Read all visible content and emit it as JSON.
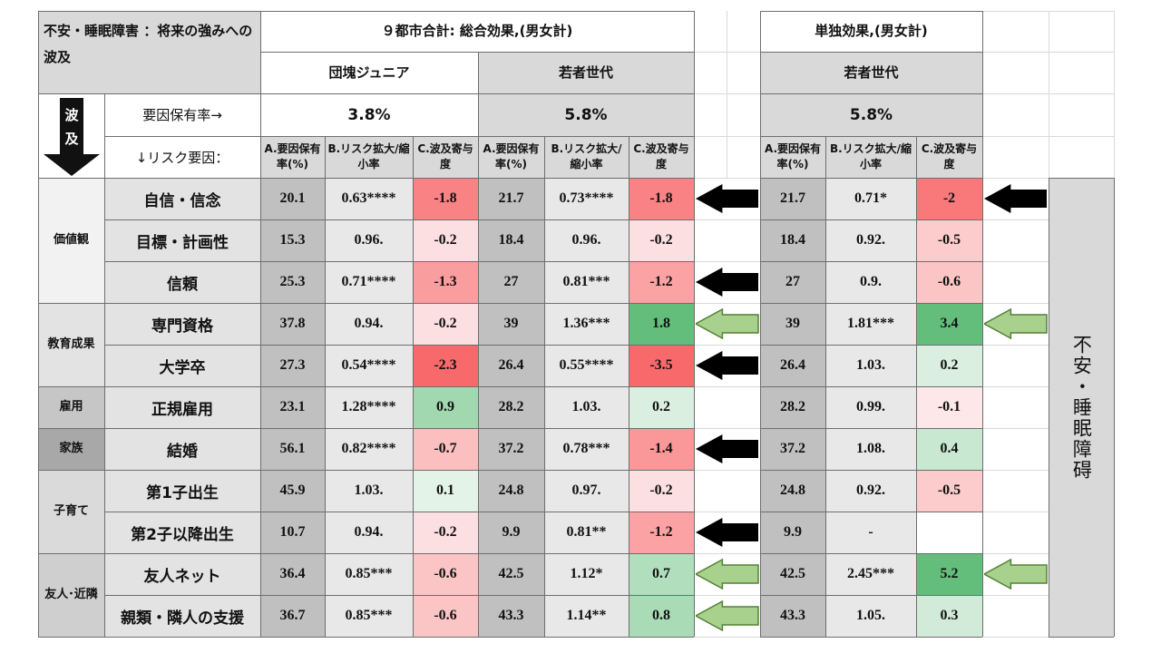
{
  "colors": {
    "header_gray": "#d9d9d9",
    "label_gray": "#e3e3e3",
    "a_gray": "#c0c0c0",
    "b_gray": "#e8e8e8",
    "neg_scale": "#f8696b",
    "pos_scale": "#63be7b",
    "arrow_solid": "#000000",
    "arrow_hollow_fill": "#a9d18e",
    "arrow_hollow_stroke": "#538135"
  },
  "header": {
    "corner_title": "不安・睡眠障害 ：将来の強みへの波及",
    "group1_title": "９都市合計: 総合効果,(男女計)",
    "group2_title": "単独効果,(男女計)",
    "sub_dankai": "団塊ジュニア",
    "sub_wakamono1": "若者世代",
    "sub_wakamono2": "若者世代",
    "hakyu": "波及",
    "rate_label": "要因保有率→",
    "risk_label": "↓リスク要因：",
    "rate_dankai": "3.8%",
    "rate_wakamono1": "5.8%",
    "rate_wakamono2": "5.8%",
    "col_a": "A.要因保有率(%)",
    "col_b_1": "B.リスク拡大/縮小率",
    "col_b_2": "B.リスク拡大/縮小率",
    "col_c": "C.波及寄与度",
    "outcome": "不安・睡眠障碍"
  },
  "chart_data": {
    "type": "table",
    "title": "不安・睡眠障害 ：将来の強みへの波及",
    "column_groups": [
      "９都市合計: 総合効果,(男女計) — 団塊ジュニア",
      "９都市合計: 総合効果,(男女計) — 若者世代",
      "単独効果,(男女計) — 若者世代"
    ],
    "columns": [
      "A.要因保有率(%)",
      "B.リスク拡大/縮小率",
      "C.波及寄与度"
    ],
    "categories": [
      "価値観",
      "教育成果",
      "雇用",
      "家族",
      "子育て",
      "友人･近隣"
    ],
    "rows": [
      {
        "factor": "自信・信念",
        "dankai": {
          "a": "20.1",
          "b": "0.63****",
          "c": "-1.8"
        },
        "wakamono": {
          "a": "21.7",
          "b": "0.73****",
          "c": "-1.8"
        },
        "single": {
          "a": "21.7",
          "b": "0.71*",
          "c": "-2"
        },
        "arrow_mid": "solid",
        "arrow_right": "solid"
      },
      {
        "factor": "目標・計画性",
        "dankai": {
          "a": "15.3",
          "b": "0.96.",
          "c": "-0.2"
        },
        "wakamono": {
          "a": "18.4",
          "b": "0.96.",
          "c": "-0.2"
        },
        "single": {
          "a": "18.4",
          "b": "0.92.",
          "c": "-0.5"
        },
        "arrow_mid": "",
        "arrow_right": ""
      },
      {
        "factor": "信頼",
        "dankai": {
          "a": "25.3",
          "b": "0.71****",
          "c": "-1.3"
        },
        "wakamono": {
          "a": "27",
          "b": "0.81***",
          "c": "-1.2"
        },
        "single": {
          "a": "27",
          "b": "0.9.",
          "c": "-0.6"
        },
        "arrow_mid": "solid",
        "arrow_right": ""
      },
      {
        "factor": "専門資格",
        "dankai": {
          "a": "37.8",
          "b": "0.94.",
          "c": "-0.2"
        },
        "wakamono": {
          "a": "39",
          "b": "1.36***",
          "c": "1.8"
        },
        "single": {
          "a": "39",
          "b": "1.81***",
          "c": "3.4"
        },
        "arrow_mid": "hollow",
        "arrow_right": "hollow"
      },
      {
        "factor": "大学卒",
        "dankai": {
          "a": "27.3",
          "b": "0.54****",
          "c": "-2.3"
        },
        "wakamono": {
          "a": "26.4",
          "b": "0.55****",
          "c": "-3.5"
        },
        "single": {
          "a": "26.4",
          "b": "1.03.",
          "c": "0.2"
        },
        "arrow_mid": "solid",
        "arrow_right": ""
      },
      {
        "factor": "正規雇用",
        "dankai": {
          "a": "23.1",
          "b": "1.28****",
          "c": "0.9"
        },
        "wakamono": {
          "a": "28.2",
          "b": "1.03.",
          "c": "0.2"
        },
        "single": {
          "a": "28.2",
          "b": "0.99.",
          "c": "-0.1"
        },
        "arrow_mid": "",
        "arrow_right": ""
      },
      {
        "factor": "結婚",
        "dankai": {
          "a": "56.1",
          "b": "0.82****",
          "c": "-0.7"
        },
        "wakamono": {
          "a": "37.2",
          "b": "0.78***",
          "c": "-1.4"
        },
        "single": {
          "a": "37.2",
          "b": "1.08.",
          "c": "0.4"
        },
        "arrow_mid": "solid",
        "arrow_right": ""
      },
      {
        "factor": "第1子出生",
        "dankai": {
          "a": "45.9",
          "b": "1.03.",
          "c": "0.1"
        },
        "wakamono": {
          "a": "24.8",
          "b": "0.97.",
          "c": "-0.2"
        },
        "single": {
          "a": "24.8",
          "b": "0.92.",
          "c": "-0.5"
        },
        "arrow_mid": "",
        "arrow_right": ""
      },
      {
        "factor": "第2子以降出生",
        "dankai": {
          "a": "10.7",
          "b": "0.94.",
          "c": "-0.2"
        },
        "wakamono": {
          "a": "9.9",
          "b": "0.81**",
          "c": "-1.2"
        },
        "single": {
          "a": "9.9",
          "b": "-",
          "c": ""
        },
        "arrow_mid": "solid",
        "arrow_right": ""
      },
      {
        "factor": "友人ネット",
        "dankai": {
          "a": "36.4",
          "b": "0.85***",
          "c": "-0.6"
        },
        "wakamono": {
          "a": "42.5",
          "b": "1.12*",
          "c": "0.7"
        },
        "single": {
          "a": "42.5",
          "b": "2.45***",
          "c": "5.2"
        },
        "arrow_mid": "hollow",
        "arrow_right": "hollow"
      },
      {
        "factor": "親類・隣人の支援",
        "dankai": {
          "a": "36.7",
          "b": "0.85***",
          "c": "-0.6"
        },
        "wakamono": {
          "a": "43.3",
          "b": "1.14**",
          "c": "0.8"
        },
        "single": {
          "a": "43.3",
          "b": "1.05.",
          "c": "0.3"
        },
        "arrow_mid": "hollow",
        "arrow_right": ""
      }
    ]
  }
}
